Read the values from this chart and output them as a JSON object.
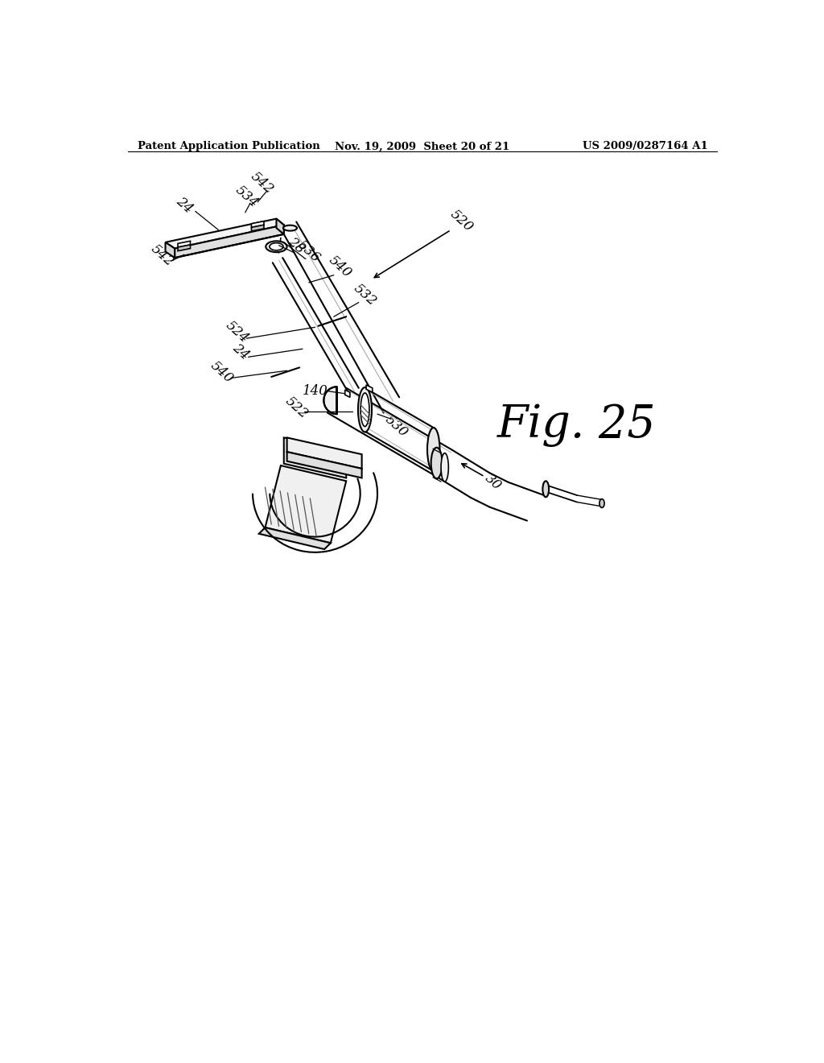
{
  "background_color": "#ffffff",
  "header_left": "Patent Application Publication",
  "header_center": "Nov. 19, 2009  Sheet 20 of 21",
  "header_right": "US 2009/0287164 A1",
  "figure_label": "Fig. 25"
}
